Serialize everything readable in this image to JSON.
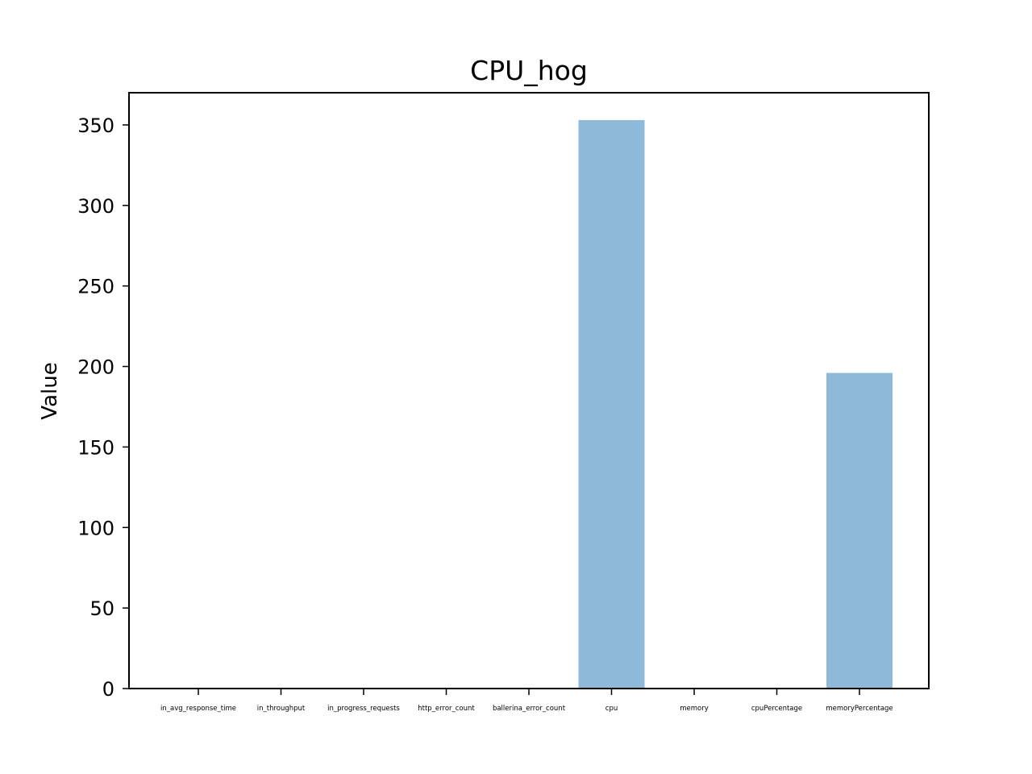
{
  "chart_data": {
    "type": "bar",
    "title": "CPU_hog",
    "xlabel": "",
    "ylabel": "Value",
    "categories": [
      "in_avg_response_time",
      "in_throughput",
      "in_progress_requests",
      "http_error_count",
      "ballerina_error_count",
      "cpu",
      "memory",
      "cpuPercentage",
      "memoryPercentage"
    ],
    "values": [
      0,
      0,
      0,
      0,
      0,
      353,
      0,
      0,
      196
    ],
    "ylim": [
      0,
      370
    ],
    "yticks": [
      0,
      50,
      100,
      150,
      200,
      250,
      300,
      350
    ],
    "grid": false,
    "bar_color": "#8fb9d9"
  }
}
